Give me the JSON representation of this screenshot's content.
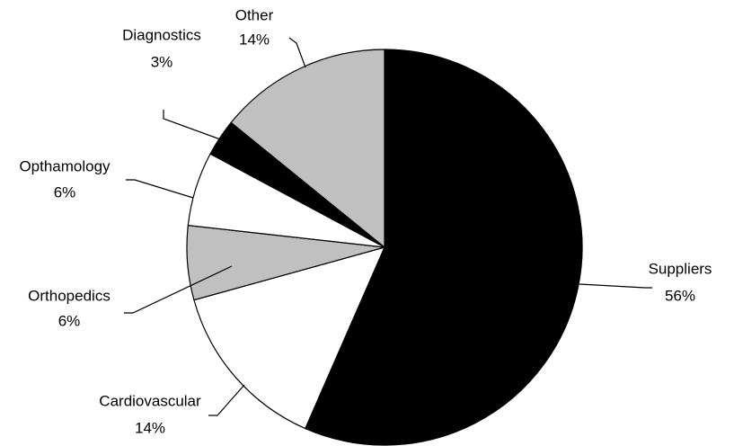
{
  "chart_data": {
    "type": "pie",
    "categories": [
      "Suppliers",
      "Cardiovascular",
      "Orthopedics",
      "Opthamology",
      "Diagnostics",
      "Other"
    ],
    "values": [
      56,
      14,
      6,
      6,
      3,
      14
    ],
    "value_labels": [
      "56%",
      "14%",
      "6%",
      "6%",
      "3%",
      "14%"
    ],
    "colors": [
      "#000000",
      "#ffffff",
      "#c0c0c0",
      "#ffffff",
      "#000000",
      "#c0c0c0"
    ]
  }
}
